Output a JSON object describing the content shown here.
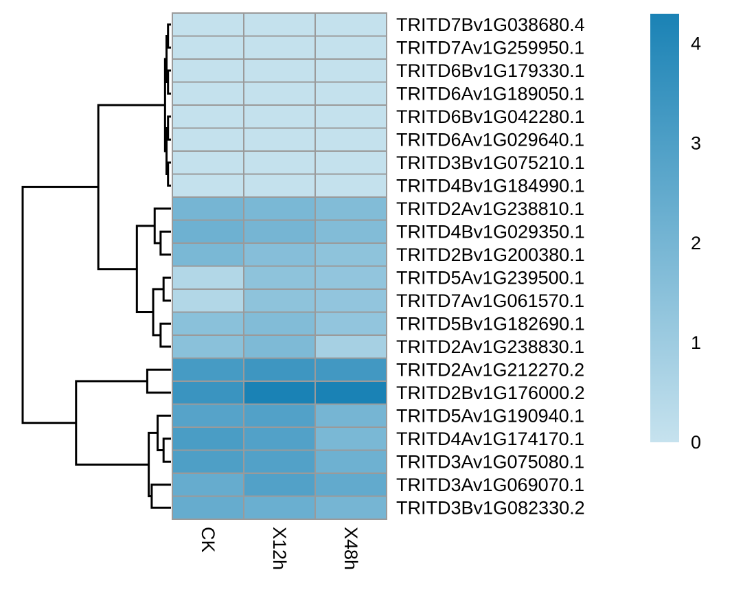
{
  "chart_data": {
    "type": "heatmap",
    "columns": [
      "CK",
      "X12h",
      "X48h"
    ],
    "rows": [
      "TRITD7Bv1G038680.4",
      "TRITD7Av1G259950.1",
      "TRITD6Bv1G179330.1",
      "TRITD6Av1G189050.1",
      "TRITD6Bv1G042280.1",
      "TRITD6Av1G029640.1",
      "TRITD3Bv1G075210.1",
      "TRITD4Bv1G184990.1",
      "TRITD2Av1G238810.1",
      "TRITD4Bv1G029350.1",
      "TRITD2Bv1G200380.1",
      "TRITD5Av1G239500.1",
      "TRITD7Av1G061570.1",
      "TRITD5Bv1G182690.1",
      "TRITD2Av1G238830.1",
      "TRITD2Av1G212270.2",
      "TRITD2Bv1G176000.2",
      "TRITD5Av1G190940.1",
      "TRITD4Av1G174170.1",
      "TRITD3Av1G075080.1",
      "TRITD3Av1G069070.1",
      "TRITD3Bv1G082330.2"
    ],
    "values": [
      [
        0.05,
        0.05,
        0.05
      ],
      [
        0.05,
        0.05,
        0.05
      ],
      [
        0.05,
        0.05,
        0.05
      ],
      [
        0.05,
        0.05,
        0.05
      ],
      [
        0.05,
        0.05,
        0.05
      ],
      [
        0.05,
        0.05,
        0.05
      ],
      [
        0.05,
        0.05,
        0.05
      ],
      [
        0.05,
        0.05,
        0.05
      ],
      [
        2.0,
        1.9,
        1.7
      ],
      [
        2.2,
        2.0,
        1.7
      ],
      [
        1.9,
        1.6,
        1.4
      ],
      [
        0.5,
        1.4,
        1.3
      ],
      [
        0.5,
        1.4,
        1.3
      ],
      [
        1.5,
        1.7,
        1.3
      ],
      [
        1.5,
        1.8,
        0.8
      ],
      [
        3.2,
        3.4,
        3.3
      ],
      [
        3.5,
        4.3,
        4.3
      ],
      [
        2.8,
        2.9,
        2.0
      ],
      [
        3.1,
        2.9,
        1.9
      ],
      [
        3.0,
        2.9,
        2.2
      ],
      [
        2.4,
        2.9,
        2.5
      ],
      [
        2.4,
        2.3,
        2.0
      ]
    ],
    "color_scale": {
      "min": 0,
      "max": 4.3,
      "low_color": "#c6e2ee",
      "high_color": "#1a82b5",
      "cell_border": "#9a9a9a"
    },
    "legend": {
      "position": "right",
      "ticks": [
        {
          "value": 0,
          "label": "0"
        },
        {
          "value": 1,
          "label": "1"
        },
        {
          "value": 2,
          "label": "2"
        },
        {
          "value": 3,
          "label": "3"
        },
        {
          "value": 4,
          "label": "4"
        }
      ]
    },
    "row_dendrogram": {
      "position": "left",
      "merges": [
        {
          "a": 0,
          "b": 1,
          "h": 0.02
        },
        {
          "a": 2,
          "b": 3,
          "h": 0.02
        },
        {
          "a": 4,
          "b": 5,
          "h": 0.02
        },
        {
          "a": 6,
          "b": 7,
          "h": 0.02
        },
        {
          "a": "n0",
          "b": "n1",
          "h": 0.03
        },
        {
          "a": "n2",
          "b": "n3",
          "h": 0.03
        },
        {
          "a": "n4",
          "b": "n5",
          "h": 0.04
        },
        {
          "a": 9,
          "b": 10,
          "h": 0.07
        },
        {
          "a": 8,
          "b": "n7",
          "h": 0.11
        },
        {
          "a": 11,
          "b": 12,
          "h": 0.05
        },
        {
          "a": 13,
          "b": 14,
          "h": 0.07
        },
        {
          "a": "n9",
          "b": "n10",
          "h": 0.12
        },
        {
          "a": "n8",
          "b": "n11",
          "h": 0.23
        },
        {
          "a": "n6",
          "b": "n12",
          "h": 0.49
        },
        {
          "a": 15,
          "b": 16,
          "h": 0.16
        },
        {
          "a": 18,
          "b": 19,
          "h": 0.05
        },
        {
          "a": 17,
          "b": "n15",
          "h": 0.09
        },
        {
          "a": 20,
          "b": 21,
          "h": 0.13
        },
        {
          "a": "n16",
          "b": "n17",
          "h": 0.15
        },
        {
          "a": "n14",
          "b": "n18",
          "h": 0.64
        },
        {
          "a": "n13",
          "b": "n19",
          "h": 1.0
        }
      ]
    }
  }
}
